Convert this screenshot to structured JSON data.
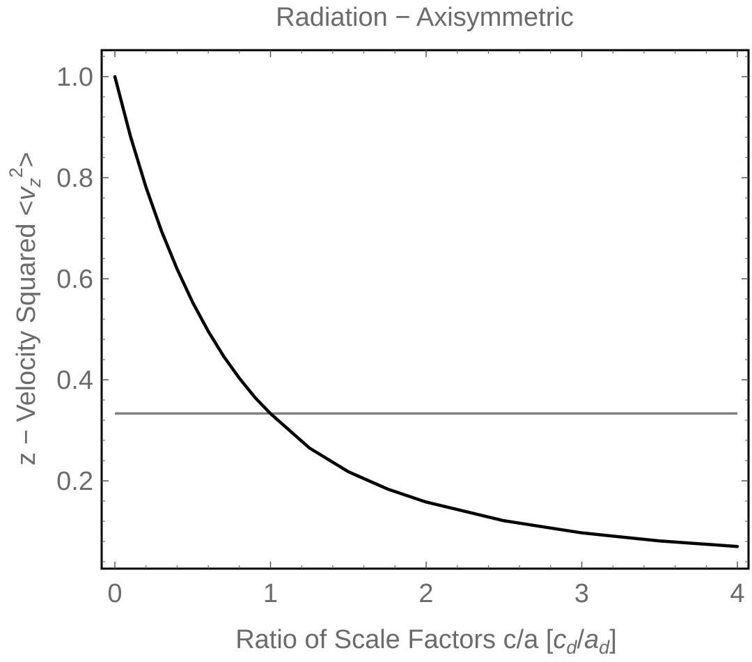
{
  "chart_data": {
    "type": "line",
    "title": "Radiation − Axisymmetric",
    "xlabel": {
      "text": "Ratio of Scale Factors c/a [",
      "c": "c",
      "c_sub": "d",
      "slash": "/",
      "a": "a",
      "a_sub": "d",
      "close": "]"
    },
    "ylabel": {
      "text": "z − Velocity Squared  <",
      "v": "v",
      "v_sub": "z",
      "v_sup": "2",
      "close": ">"
    },
    "xlim": [
      0,
      4
    ],
    "ylim": [
      0.0,
      1.0
    ],
    "x_ticks": [
      0,
      1,
      2,
      3,
      4
    ],
    "x_tick_labels": [
      "0",
      "1",
      "2",
      "3",
      "4"
    ],
    "y_ticks": [
      0.2,
      0.4,
      0.6,
      0.8,
      1.0
    ],
    "y_tick_labels": [
      "0.2",
      "0.4",
      "0.6",
      "0.8",
      "1.0"
    ],
    "series": [
      {
        "color": "#000000",
        "x": [
          0.0,
          0.1,
          0.2,
          0.3,
          0.4,
          0.5,
          0.6,
          0.7,
          0.8,
          0.9,
          1.0,
          1.25,
          1.5,
          1.75,
          2.0,
          2.5,
          3.0,
          3.5,
          4.0
        ],
        "y": [
          1.0,
          0.882,
          0.781,
          0.694,
          0.619,
          0.553,
          0.496,
          0.446,
          0.403,
          0.365,
          0.333,
          0.265,
          0.218,
          0.184,
          0.158,
          0.121,
          0.097,
          0.081,
          0.07
        ]
      },
      {
        "color": "#808080",
        "x": [
          0,
          4
        ],
        "y": [
          0.3333,
          0.3333
        ]
      }
    ],
    "grid": false
  }
}
